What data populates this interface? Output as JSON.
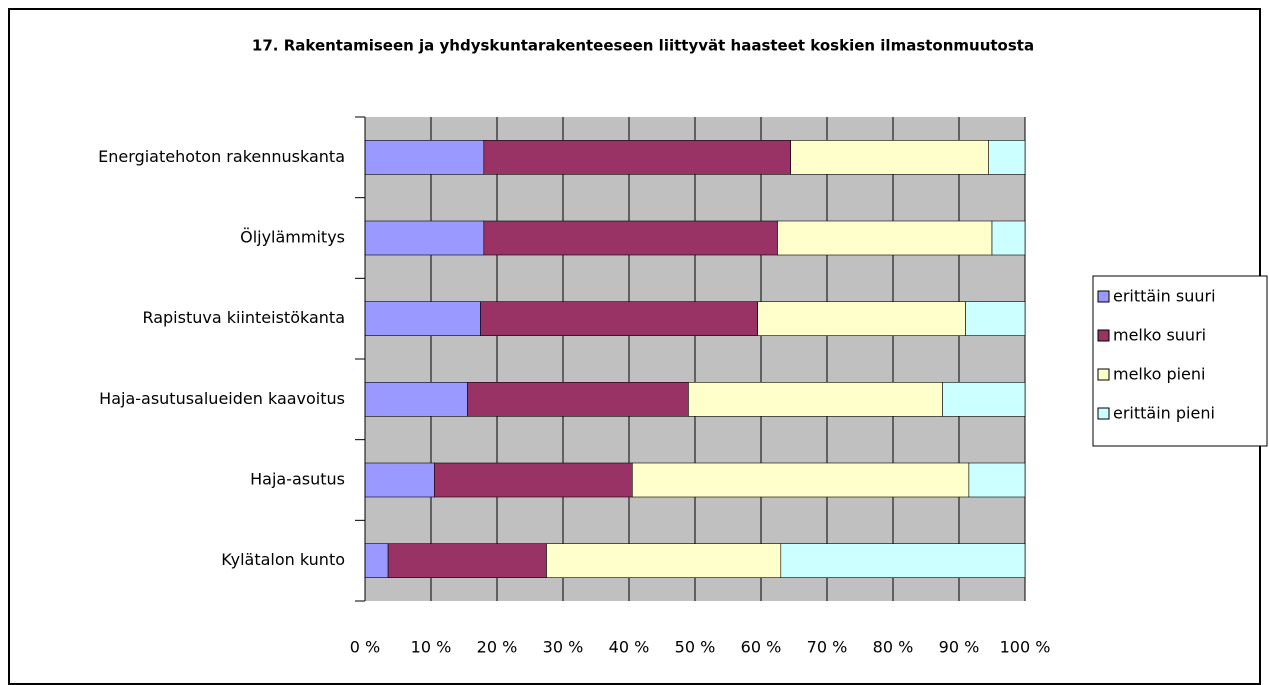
{
  "chart_data": {
    "type": "stacked-bar-horizontal",
    "title": "17. Rakentamiseen ja yhdyskuntarakenteeseen liittyvät haasteet koskien ilmastonmuutosta",
    "categories": [
      "Energiatehoton rakennuskanta",
      "Öljylämmitys",
      "Rapistuva kiinteistökanta",
      "Haja-asutusalueiden kaavoitus",
      "Haja-asutus",
      "Kylätalon kunto"
    ],
    "series": [
      {
        "name": "erittäin suuri",
        "color": "#9999ff",
        "values": [
          18,
          18,
          17.5,
          15.5,
          10.5,
          3.5
        ]
      },
      {
        "name": "melko suuri",
        "color": "#993366",
        "values": [
          46.5,
          44.5,
          42,
          33.5,
          30,
          24
        ]
      },
      {
        "name": "melko pieni",
        "color": "#ffffcc",
        "values": [
          30,
          32.5,
          31.5,
          38.5,
          51,
          35.5
        ]
      },
      {
        "name": "erittäin pieni",
        "color": "#ccffff",
        "values": [
          5.5,
          5,
          9,
          12.5,
          8.5,
          37
        ]
      }
    ],
    "xlim": [
      0,
      100
    ],
    "xticks": [
      {
        "value": 0,
        "label": "0 %"
      },
      {
        "value": 10,
        "label": "10 %"
      },
      {
        "value": 20,
        "label": "20 %"
      },
      {
        "value": 30,
        "label": "30 %"
      },
      {
        "value": 40,
        "label": "40 %"
      },
      {
        "value": 50,
        "label": "50 %"
      },
      {
        "value": 60,
        "label": "60 %"
      },
      {
        "value": 70,
        "label": "70 %"
      },
      {
        "value": 80,
        "label": "80 %"
      },
      {
        "value": 90,
        "label": "90 %"
      },
      {
        "value": 100,
        "label": "100 %"
      }
    ],
    "grid": true,
    "legend": "right",
    "plot_background": "#c0c0c0"
  }
}
